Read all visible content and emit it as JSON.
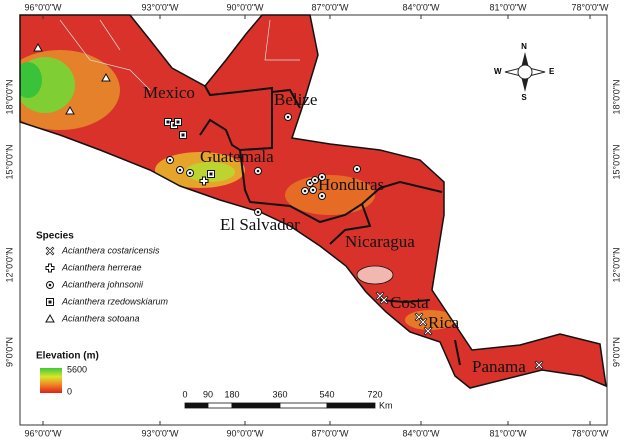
{
  "graticule": {
    "longitudes": [
      "96°0'0\"W",
      "93°0'0\"W",
      "90°0'0\"W",
      "87°0'0\"W",
      "84°0'0\"W",
      "81°0'0\"W",
      "78°0'0\"W"
    ],
    "latitudes": [
      "18°0'0\"N",
      "15°0'0\"N",
      "12°0'0\"N",
      "9°0'0\"N"
    ]
  },
  "countries": [
    "Mexico",
    "Belize",
    "Guatemala",
    "Honduras",
    "El Salvador",
    "Nicaragua",
    "Costa",
    "Rica",
    "Panama"
  ],
  "legend": {
    "species_title": "Species",
    "species": [
      "Acianthera costaricensis",
      "Acianthera herrerae",
      "Acianthera johnsonii",
      "Acianthera rzedowskiarum",
      "Acianthera sotoana"
    ],
    "elevation_title": "Elevation (m)",
    "elevation_max": 5600,
    "elevation_min": 0
  },
  "scale_bar": {
    "ticks": [
      0,
      90,
      180,
      360,
      540,
      720
    ],
    "unit": "Km"
  },
  "compass": {
    "n": "N",
    "s": "S",
    "e": "E",
    "w": "W"
  }
}
